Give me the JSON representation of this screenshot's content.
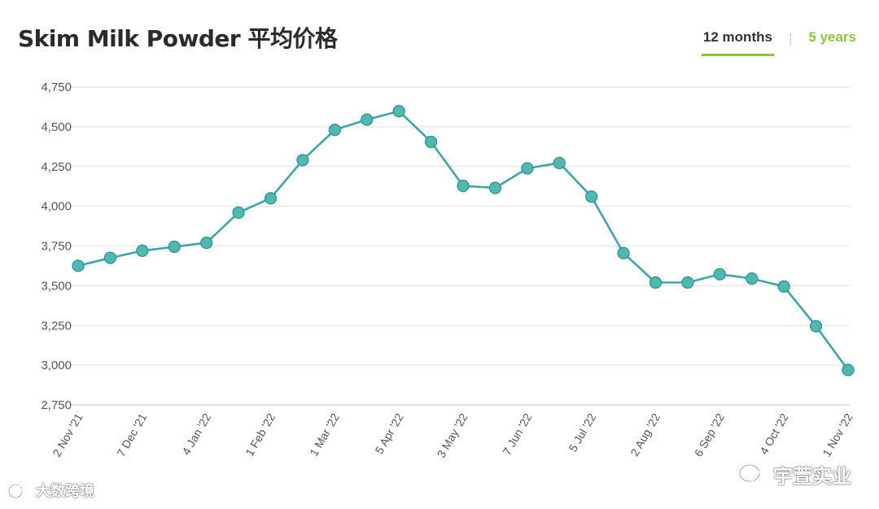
{
  "header": {
    "title": "Skim Milk Powder 平均价格"
  },
  "tabs": [
    {
      "label": "12 months",
      "active": true
    },
    {
      "label": "5 years",
      "active": false
    }
  ],
  "watermarks": {
    "left": "大数跨境",
    "right": "宇萱实业"
  },
  "chart_data": {
    "type": "line",
    "title": "Skim Milk Powder 平均价格",
    "xlabel": "",
    "ylabel": "",
    "ylim": [
      2750,
      4750
    ],
    "yticks": [
      2750,
      3000,
      3250,
      3500,
      3750,
      4000,
      4250,
      4500,
      4750
    ],
    "ytick_labels": [
      "2,750",
      "3,000",
      "3,250",
      "3,500",
      "3,750",
      "4,000",
      "4,250",
      "4,500",
      "4,750"
    ],
    "grid": true,
    "legend": "none",
    "color": "#3ea6a6",
    "marker_color": "#4fb8b0",
    "xtick_labels": [
      {
        "index": 0,
        "label": "2 Nov '21"
      },
      {
        "index": 2,
        "label": "7 Dec '21"
      },
      {
        "index": 4,
        "label": "4 Jan '22"
      },
      {
        "index": 6,
        "label": "1 Feb '22"
      },
      {
        "index": 8,
        "label": "1 Mar '22"
      },
      {
        "index": 10,
        "label": "5 Apr '22"
      },
      {
        "index": 12,
        "label": "3 May '22"
      },
      {
        "index": 14,
        "label": "7 Jun '22"
      },
      {
        "index": 16,
        "label": "5 Jul '22"
      },
      {
        "index": 18,
        "label": "2 Aug '22"
      },
      {
        "index": 20,
        "label": "6 Sep '22"
      },
      {
        "index": 22,
        "label": "4 Oct '22"
      },
      {
        "index": 24,
        "label": "1 Nov '22"
      }
    ],
    "series": [
      {
        "values": [
          3625,
          3675,
          3720,
          3745,
          3770,
          3960,
          4050,
          4290,
          4480,
          4545,
          4598,
          4405,
          4128,
          4115,
          4238,
          4272,
          4060,
          3705,
          3520,
          3520,
          3572,
          3545,
          3495,
          3245,
          2970
        ]
      }
    ]
  }
}
